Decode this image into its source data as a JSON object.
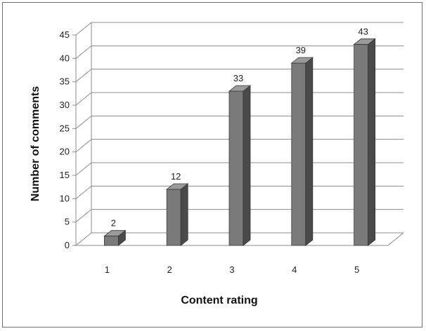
{
  "chart_data": {
    "type": "bar",
    "categories": [
      "1",
      "2",
      "3",
      "4",
      "5"
    ],
    "values": [
      2,
      12,
      33,
      39,
      43
    ],
    "data_labels": [
      "2",
      "12",
      "33",
      "39",
      "43"
    ],
    "xlabel": "Content rating",
    "ylabel": "Number of comments",
    "ylim": [
      0,
      45
    ],
    "yticks": [
      "0",
      "5",
      "10",
      "15",
      "20",
      "25",
      "30",
      "35",
      "40",
      "45"
    ],
    "grid": true,
    "legend": "none",
    "style": "3d-column",
    "colors": {
      "bar_front": "#7a7a7a",
      "bar_side": "#4a4a4a",
      "bar_top": "#9a9a9a",
      "grid": "#8c8c8c"
    }
  }
}
